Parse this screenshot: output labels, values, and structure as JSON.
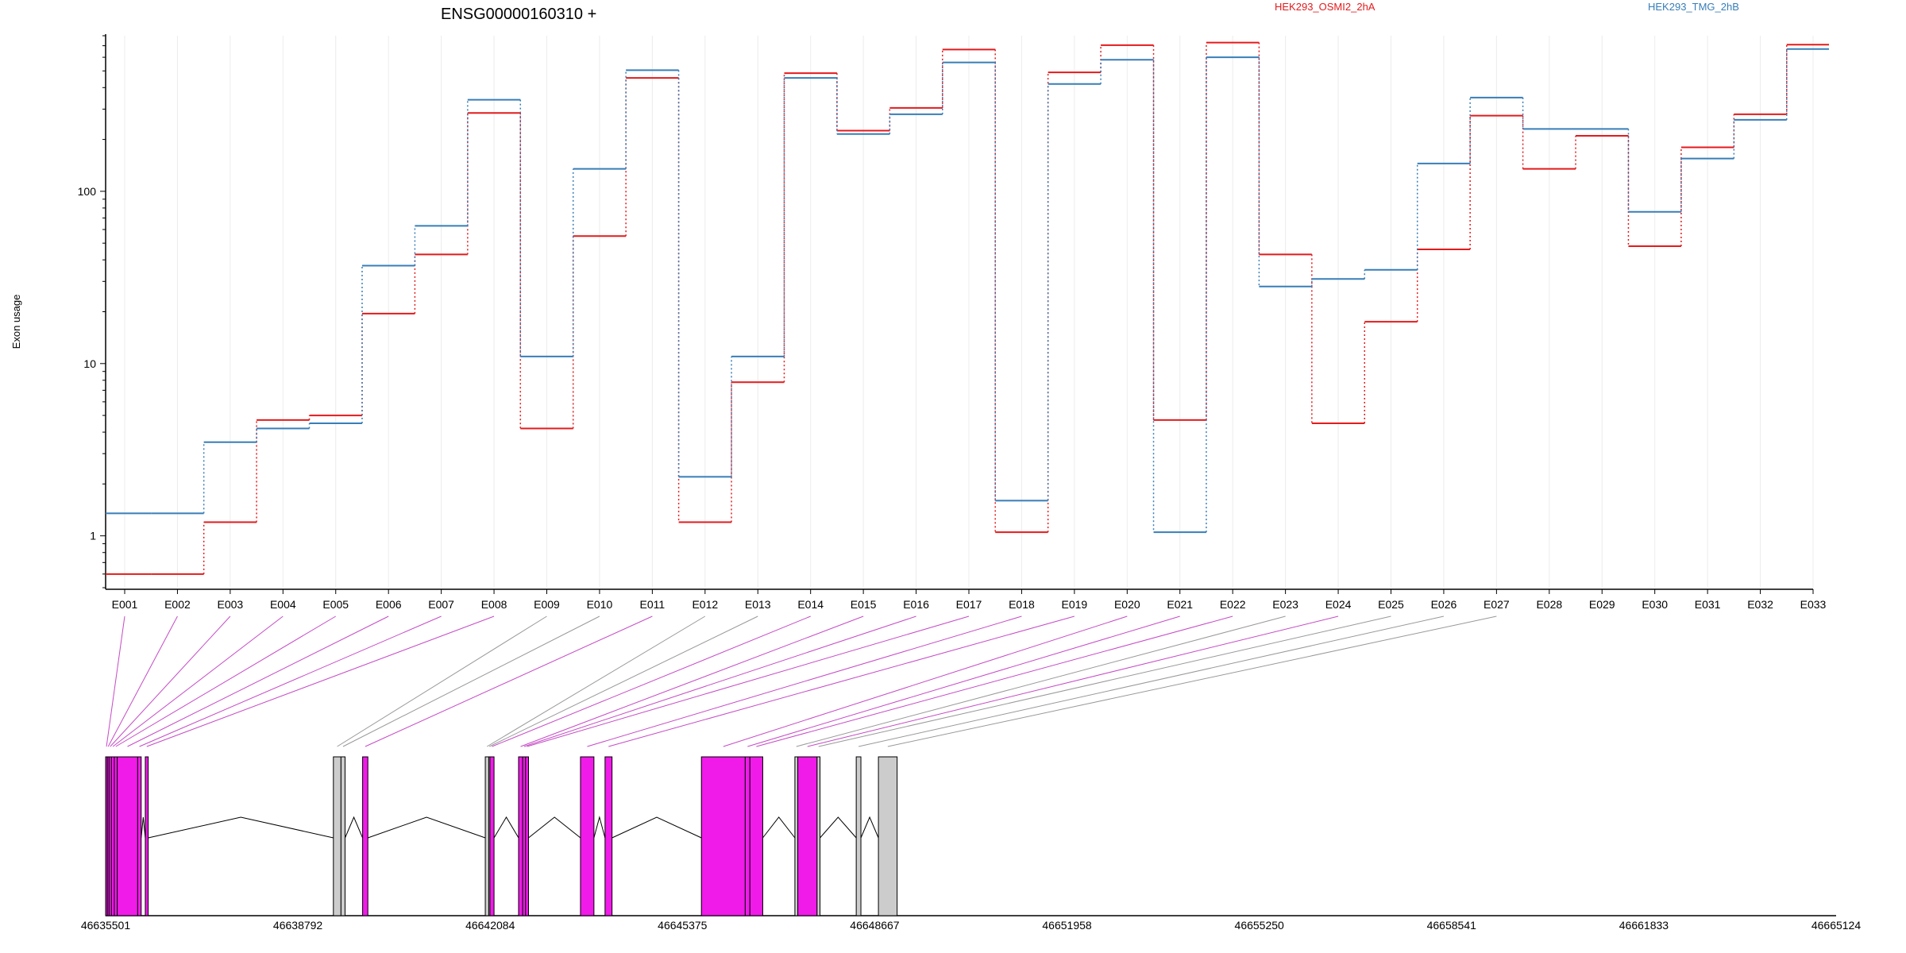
{
  "chart_data": {
    "type": "line",
    "title": "ENSG00000160310 +",
    "ylabel": "Exon usage",
    "xlabel": "",
    "y_scale": "log",
    "y_range": [
      0.5,
      800
    ],
    "y_ticks": [
      1,
      10,
      100
    ],
    "y_tick_labels": [
      "1",
      "10",
      "100"
    ],
    "grid": "vertical",
    "legend_placement": "top",
    "categories": [
      "E001",
      "E002",
      "E003",
      "E004",
      "E005",
      "E006",
      "E007",
      "E008",
      "E009",
      "E010",
      "E011",
      "E012",
      "E013",
      "E014",
      "E015",
      "E016",
      "E017",
      "E018",
      "E019",
      "E020",
      "E021",
      "E022",
      "E023",
      "E024",
      "E025",
      "E026",
      "E027",
      "E028",
      "E029",
      "E030",
      "E031",
      "E032",
      "E033"
    ],
    "series": [
      {
        "name": "HEK293_OSMI2_2hA",
        "color": "#e41a1c",
        "values": [
          0.6,
          0.6,
          1.2,
          4.7,
          5.0,
          19.5,
          43,
          285,
          4.2,
          55,
          455,
          1.2,
          7.8,
          485,
          225,
          305,
          665,
          1.05,
          490,
          705,
          4.7,
          730,
          43,
          4.5,
          17.5,
          46,
          275,
          135,
          210,
          48,
          180,
          280,
          710
        ]
      },
      {
        "name": "HEK293_TMG_2hB",
        "color": "#377eb8",
        "values": [
          1.35,
          1.35,
          3.5,
          4.2,
          4.5,
          37,
          63,
          340,
          11,
          135,
          505,
          2.2,
          11,
          455,
          215,
          280,
          560,
          1.6,
          420,
          580,
          1.05,
          600,
          28,
          31,
          35,
          145,
          350,
          230,
          230,
          76,
          155,
          260,
          670
        ]
      }
    ],
    "gene_model": {
      "coordinate_labels": [
        "46635501",
        "46638792",
        "46642084",
        "46645375",
        "46648667",
        "46651958",
        "46655250",
        "46658541",
        "46661833",
        "46665124"
      ],
      "features": [
        {
          "exon": "E001",
          "start": 46635501,
          "end": 46635530,
          "color": "#f01be8"
        },
        {
          "exon": "E002",
          "start": 46635530,
          "end": 46635560,
          "color": "#f01be8"
        },
        {
          "exon": "E003",
          "start": 46635560,
          "end": 46635600,
          "color": "#f01be8"
        },
        {
          "exon": "E004",
          "start": 46635600,
          "end": 46635650,
          "color": "#f01be8"
        },
        {
          "exon": "E005",
          "start": 46635650,
          "end": 46635700,
          "color": "#f01be8"
        },
        {
          "exon": "E006",
          "start": 46635700,
          "end": 46636050,
          "color": "#f01be8"
        },
        {
          "exon": "E007",
          "start": 46636050,
          "end": 46636110,
          "color": "#f01be8"
        },
        {
          "exon": "E008",
          "start": 46636180,
          "end": 46636230,
          "color": "#f01be8"
        },
        {
          "exon": "E009",
          "start": 46639400,
          "end": 46639530,
          "color": "#cccccc"
        },
        {
          "exon": "E010",
          "start": 46639530,
          "end": 46639600,
          "color": "#cccccc"
        },
        {
          "exon": "E011",
          "start": 46639900,
          "end": 46639990,
          "color": "#f01be8"
        },
        {
          "exon": "E012",
          "start": 46642000,
          "end": 46642060,
          "color": "#cccccc"
        },
        {
          "exon": "E013",
          "start": 46642060,
          "end": 46642080,
          "color": "#cccccc"
        },
        {
          "exon": "E014",
          "start": 46642080,
          "end": 46642150,
          "color": "#f01be8"
        },
        {
          "exon": "E015",
          "start": 46642570,
          "end": 46642640,
          "color": "#f01be8"
        },
        {
          "exon": "E016",
          "start": 46642640,
          "end": 46642690,
          "color": "#f01be8"
        },
        {
          "exon": "E017",
          "start": 46642690,
          "end": 46642740,
          "color": "#f01be8"
        },
        {
          "exon": "E018",
          "start": 46643630,
          "end": 46643860,
          "color": "#f01be8"
        },
        {
          "exon": "E019",
          "start": 46644050,
          "end": 46644170,
          "color": "#f01be8"
        },
        {
          "exon": "E020",
          "start": 46645700,
          "end": 46646450,
          "color": "#f01be8"
        },
        {
          "exon": "E021",
          "start": 46646450,
          "end": 46646530,
          "color": "#f01be8"
        },
        {
          "exon": "E022",
          "start": 46646530,
          "end": 46646750,
          "color": "#f01be8"
        },
        {
          "exon": "E023",
          "start": 46647300,
          "end": 46647350,
          "color": "#cccccc"
        },
        {
          "exon": "E024",
          "start": 46647350,
          "end": 46647680,
          "color": "#f01be8"
        },
        {
          "exon": "E025",
          "start": 46647680,
          "end": 46647730,
          "color": "#cccccc"
        },
        {
          "exon": "E026",
          "start": 46648350,
          "end": 46648430,
          "color": "#cccccc"
        },
        {
          "exon": "E027",
          "start": 46648730,
          "end": 46649050,
          "color": "#cccccc"
        }
      ]
    }
  },
  "legend": {
    "series_a": "HEK293_OSMI2_2hA",
    "series_b": "HEK293_TMG_2hB"
  }
}
